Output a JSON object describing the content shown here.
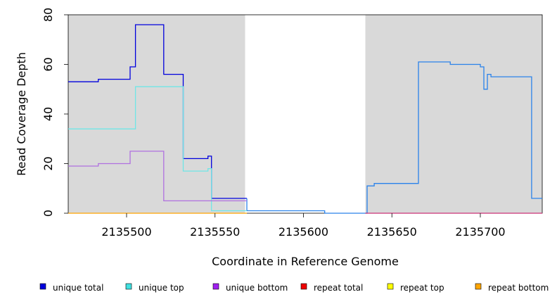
{
  "chart_data": {
    "type": "line",
    "title": "",
    "xlabel": "Coordinate in Reference Genome",
    "ylabel": "Read Coverage Depth",
    "xlim": [
      2135467,
      2135735
    ],
    "ylim": [
      0,
      80
    ],
    "x_ticks": [
      {
        "value": 2135500,
        "label": "2135500"
      },
      {
        "value": 2135550,
        "label": "2135550"
      },
      {
        "value": 2135600,
        "label": "2135600"
      },
      {
        "value": 2135650,
        "label": "2135650"
      },
      {
        "value": 2135700,
        "label": "2135700"
      }
    ],
    "y_ticks": [
      {
        "value": 0,
        "label": "0"
      },
      {
        "value": 20,
        "label": "20"
      },
      {
        "value": 40,
        "label": "40"
      },
      {
        "value": 60,
        "label": "60"
      },
      {
        "value": 80,
        "label": "80"
      }
    ],
    "grid": false,
    "legend_position": "bottom",
    "shaded_regions": [
      {
        "x_start": 2135467,
        "x_end": 2135567,
        "color": "#d9d9d9"
      },
      {
        "x_start": 2135635,
        "x_end": 2135735,
        "color": "#d9d9d9"
      }
    ],
    "series": [
      {
        "name": "unique total",
        "color": "#0000dd",
        "segments": [
          {
            "color": "#0000dd",
            "x": [
              2135467,
              2135484,
              2135484,
              2135502,
              2135502,
              2135505,
              2135505,
              2135521,
              2135521,
              2135532,
              2135532,
              2135546,
              2135546,
              2135548,
              2135548,
              2135568
            ],
            "y": [
              53,
              53,
              54,
              54,
              59,
              59,
              76,
              76,
              56,
              56,
              22,
              22,
              23,
              23,
              6,
              6
            ]
          },
          {
            "color": "#2a82ea",
            "x": [
              2135568,
              2135568,
              2135612,
              2135612,
              2135636,
              2135636,
              2135640,
              2135640,
              2135665,
              2135665,
              2135683,
              2135683,
              2135700,
              2135700,
              2135702,
              2135702,
              2135704,
              2135704,
              2135706,
              2135706,
              2135729,
              2135729,
              2135735
            ],
            "y": [
              6,
              1,
              1,
              0,
              0,
              11,
              11,
              12,
              12,
              61,
              61,
              60,
              60,
              59,
              59,
              50,
              50,
              56,
              56,
              55,
              55,
              6,
              6
            ]
          }
        ]
      },
      {
        "name": "unique top",
        "color": "#40e0e0",
        "segments": [
          {
            "color": "#70e6e6",
            "x": [
              2135467,
              2135505,
              2135505,
              2135532,
              2135532,
              2135546,
              2135546,
              2135548,
              2135548,
              2135568
            ],
            "y": [
              34,
              34,
              51,
              51,
              17,
              17,
              18,
              18,
              1,
              1
            ]
          }
        ]
      },
      {
        "name": "unique bottom",
        "color": "#a020f0",
        "segments": [
          {
            "color": "#b070e0",
            "x": [
              2135467,
              2135484,
              2135484,
              2135502,
              2135502,
              2135521,
              2135521,
              2135568
            ],
            "y": [
              19,
              19,
              20,
              20,
              25,
              25,
              5,
              5
            ]
          }
        ]
      },
      {
        "name": "repeat total",
        "color": "#ee0000",
        "segments": [
          {
            "color": "#cc3377",
            "x": [
              2135635,
              2135735
            ],
            "y": [
              0,
              0
            ]
          }
        ]
      },
      {
        "name": "repeat top",
        "color": "#ffff00",
        "segments": []
      },
      {
        "name": "repeat bottom",
        "color": "#ffa500",
        "segments": [
          {
            "color": "#ffa500",
            "x": [
              2135467,
              2135568
            ],
            "y": [
              0,
              0
            ]
          }
        ]
      }
    ]
  }
}
